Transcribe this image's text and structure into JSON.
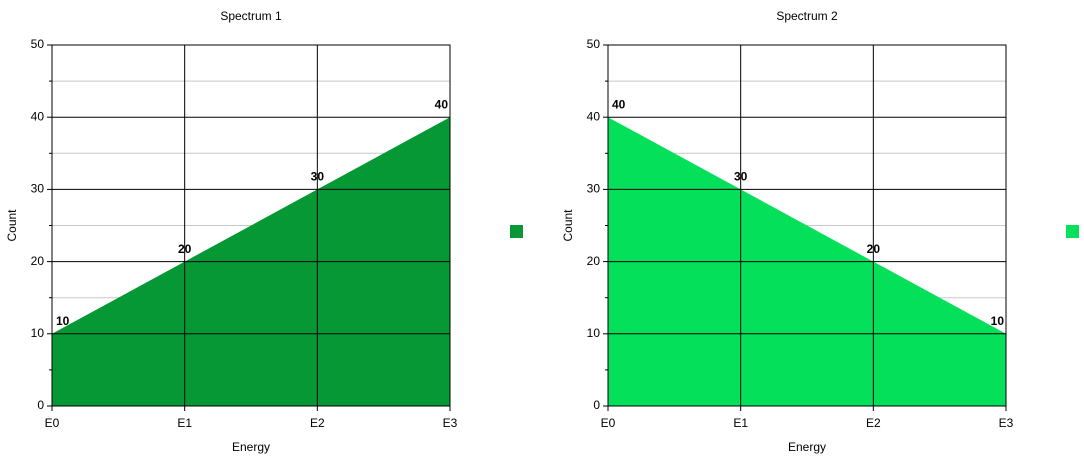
{
  "chart_data": [
    {
      "type": "area",
      "title": "Spectrum 1",
      "x_label": "Energy",
      "y_label": "Count",
      "categories": [
        "E0",
        "E1",
        "E2",
        "E3"
      ],
      "series": [
        {
          "color": "#069834",
          "values": [
            10,
            20,
            30,
            40
          ]
        }
      ],
      "ylim": [
        0,
        50
      ],
      "yticks": [
        0,
        10,
        20,
        30,
        40,
        50
      ],
      "minor_yticks": [
        5,
        15,
        25,
        35,
        45
      ],
      "grid": true,
      "data_labels": true,
      "legend": "right"
    },
    {
      "type": "area",
      "title": "Spectrum 2",
      "x_label": "Energy",
      "y_label": "Count",
      "categories": [
        "E0",
        "E1",
        "E2",
        "E3"
      ],
      "series": [
        {
          "color": "#05e05a",
          "values": [
            40,
            30,
            20,
            10
          ]
        }
      ],
      "ylim": [
        0,
        50
      ],
      "yticks": [
        0,
        10,
        20,
        30,
        40,
        50
      ],
      "minor_yticks": [
        5,
        15,
        25,
        35,
        45
      ],
      "grid": true,
      "data_labels": true,
      "legend": "right"
    }
  ]
}
